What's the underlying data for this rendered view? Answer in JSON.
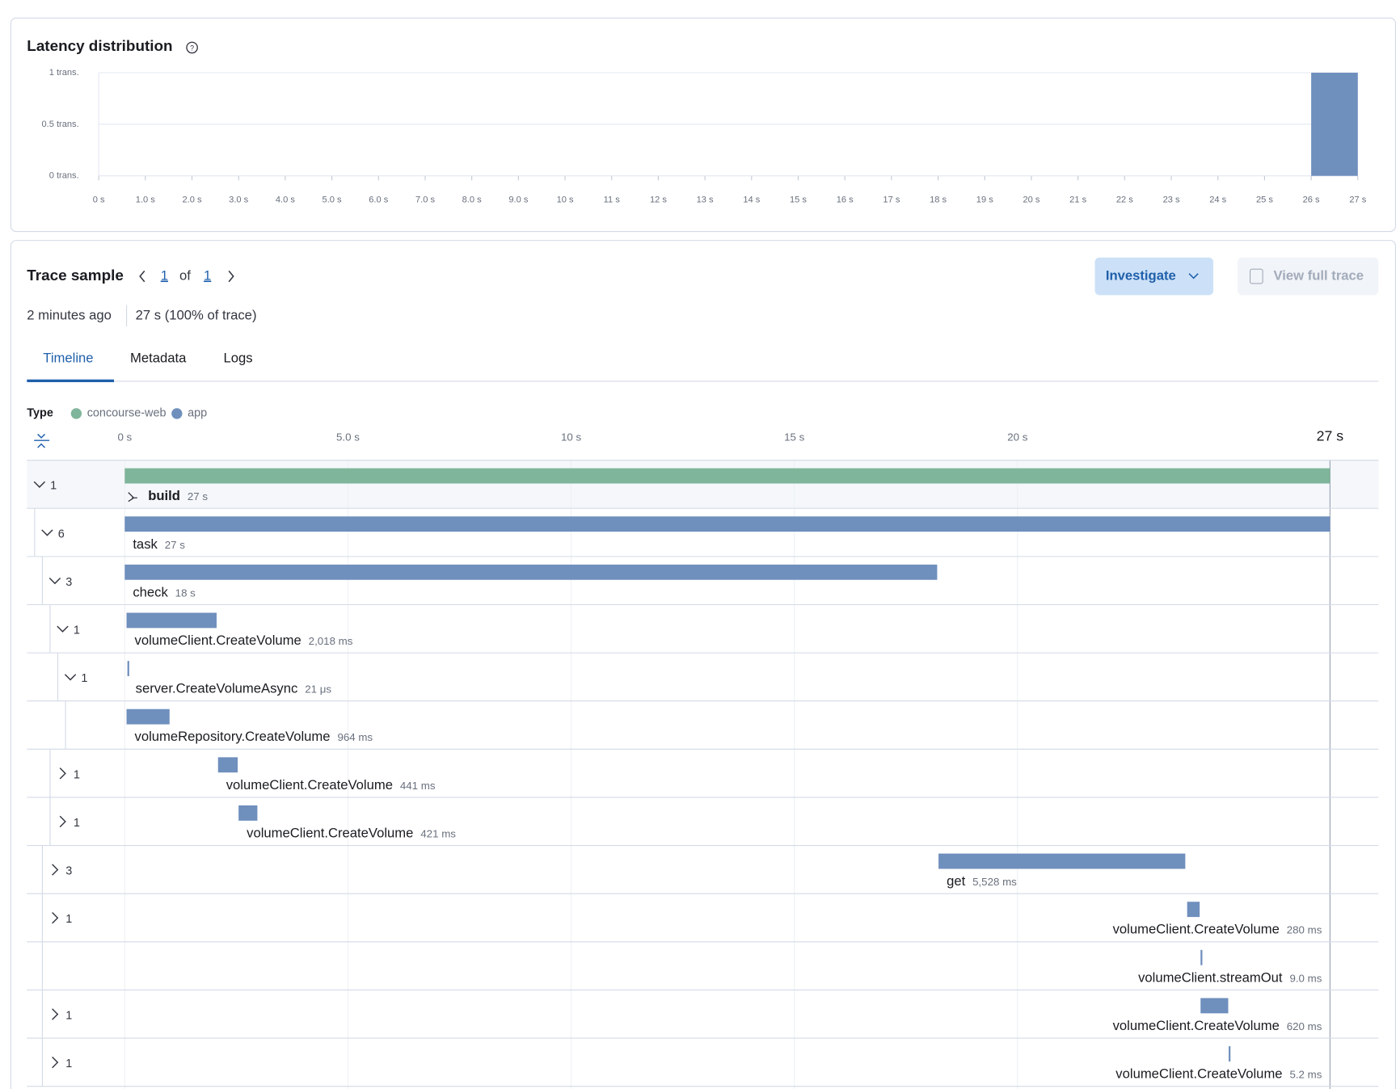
{
  "latency_distribution": {
    "title": "Latency distribution",
    "ylim": [
      0,
      1
    ],
    "yticks": [
      {
        "value": 0,
        "label": "0 trans."
      },
      {
        "value": 0.5,
        "label": "0.5 trans."
      },
      {
        "value": 1,
        "label": "1 trans."
      }
    ],
    "xlim": [
      0,
      27
    ],
    "xticks": [
      {
        "value": 0,
        "label": "0 s"
      },
      {
        "value": 1,
        "label": "1.0 s"
      },
      {
        "value": 2,
        "label": "2.0 s"
      },
      {
        "value": 3,
        "label": "3.0 s"
      },
      {
        "value": 4,
        "label": "4.0 s"
      },
      {
        "value": 5,
        "label": "5.0 s"
      },
      {
        "value": 6,
        "label": "6.0 s"
      },
      {
        "value": 7,
        "label": "7.0 s"
      },
      {
        "value": 8,
        "label": "8.0 s"
      },
      {
        "value": 9,
        "label": "9.0 s"
      },
      {
        "value": 10,
        "label": "10 s"
      },
      {
        "value": 11,
        "label": "11 s"
      },
      {
        "value": 12,
        "label": "12 s"
      },
      {
        "value": 13,
        "label": "13 s"
      },
      {
        "value": 14,
        "label": "14 s"
      },
      {
        "value": 15,
        "label": "15 s"
      },
      {
        "value": 16,
        "label": "16 s"
      },
      {
        "value": 17,
        "label": "17 s"
      },
      {
        "value": 18,
        "label": "18 s"
      },
      {
        "value": 19,
        "label": "19 s"
      },
      {
        "value": 20,
        "label": "20 s"
      },
      {
        "value": 21,
        "label": "21 s"
      },
      {
        "value": 22,
        "label": "22 s"
      },
      {
        "value": 23,
        "label": "23 s"
      },
      {
        "value": 24,
        "label": "24 s"
      },
      {
        "value": 25,
        "label": "25 s"
      },
      {
        "value": 26,
        "label": "26 s"
      },
      {
        "value": 27,
        "label": "27 s"
      }
    ],
    "bins": [
      26,
      27
    ],
    "counts": [
      1
    ],
    "color": "#6f8fbd"
  },
  "trace_sample": {
    "title": "Trace sample",
    "page": 1,
    "of": "of",
    "pages": 1,
    "investigate": "Investigate",
    "view_full_trace": "View full trace",
    "age": "2 minutes ago",
    "duration": "27 s (100% of trace)",
    "tabs": [
      "Timeline",
      "Metadata",
      "Logs"
    ],
    "active_tab": 0
  },
  "timeline": {
    "type_label": "Type",
    "legend": [
      {
        "name": "concourse-web",
        "color": "#7fb59a"
      },
      {
        "name": "app",
        "color": "#6f8fbd"
      }
    ],
    "xlim": [
      0,
      27
    ],
    "ticks": [
      {
        "value": 0,
        "label": "0 s"
      },
      {
        "value": 5,
        "label": "5.0 s"
      },
      {
        "value": 10,
        "label": "10 s"
      },
      {
        "value": 15,
        "label": "15 s"
      },
      {
        "value": 20,
        "label": "20 s"
      }
    ],
    "end_tick": {
      "value": 27,
      "label": "27 s"
    },
    "rows": [
      {
        "count": 1,
        "expanded": true,
        "depth": 0,
        "name": "build",
        "duration_label": "27 s",
        "start": 0,
        "duration": 27,
        "service": 0
      },
      {
        "count": 6,
        "expanded": true,
        "depth": 1,
        "name": "task",
        "duration_label": "27 s",
        "start": 0,
        "duration": 27,
        "service": 1
      },
      {
        "count": 3,
        "expanded": true,
        "depth": 2,
        "name": "check",
        "duration_label": "18 s",
        "start": 0,
        "duration": 18.2,
        "service": 1
      },
      {
        "count": 1,
        "expanded": true,
        "depth": 3,
        "name": "volumeClient.CreateVolume",
        "duration_label": "2,018 ms",
        "start": 0.04,
        "duration": 2.018,
        "service": 1
      },
      {
        "count": 1,
        "expanded": true,
        "depth": 4,
        "name": "server.CreateVolumeAsync",
        "duration_label": "21 μs",
        "start": 0.06,
        "duration": 2.1e-05,
        "service": 1
      },
      {
        "count": null,
        "expanded": false,
        "depth": 5,
        "name": "volumeRepository.CreateVolume",
        "duration_label": "964 ms",
        "start": 0.04,
        "duration": 0.964,
        "service": 1
      },
      {
        "count": 1,
        "expanded": false,
        "depth": 3,
        "name": "volumeClient.CreateVolume",
        "duration_label": "441 ms",
        "start": 2.09,
        "duration": 0.441,
        "service": 1
      },
      {
        "count": 1,
        "expanded": false,
        "depth": 3,
        "name": "volumeClient.CreateVolume",
        "duration_label": "421 ms",
        "start": 2.55,
        "duration": 0.421,
        "service": 1
      },
      {
        "count": 3,
        "expanded": false,
        "depth": 2,
        "name": "get",
        "duration_label": "5,528 ms",
        "start": 18.23,
        "duration": 5.528,
        "service": 1
      },
      {
        "count": 1,
        "expanded": false,
        "depth": 2,
        "name": "volumeClient.CreateVolume",
        "duration_label": "280 ms",
        "start": 23.8,
        "duration": 0.28,
        "service": 1
      },
      {
        "count": null,
        "expanded": false,
        "depth": 2,
        "name": "volumeClient.streamOut",
        "duration_label": "9.0 ms",
        "start": 24.1,
        "duration": 0.009,
        "service": 1
      },
      {
        "count": 1,
        "expanded": false,
        "depth": 2,
        "name": "volumeClient.CreateVolume",
        "duration_label": "620 ms",
        "start": 24.1,
        "duration": 0.62,
        "service": 1
      },
      {
        "count": 1,
        "expanded": false,
        "depth": 2,
        "name": "volumeClient.CreateVolume",
        "duration_label": "5.2 ms",
        "start": 24.73,
        "duration": 0.0052,
        "service": 1
      }
    ]
  }
}
